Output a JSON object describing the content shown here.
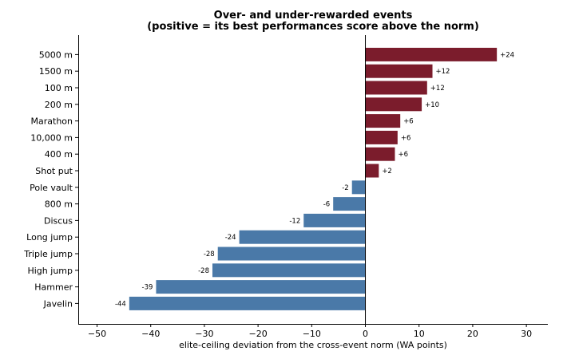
{
  "chart_data": {
    "type": "bar",
    "orientation": "horizontal",
    "title_line1": "Over- and under-rewarded events",
    "title_line2": "(positive = its best performances score above the norm)",
    "xlabel": "elite-ceiling deviation from the cross-event norm (WA points)",
    "ylabel": "",
    "xlim": [
      -53.5,
      34
    ],
    "xticks": [
      -50,
      -40,
      -30,
      -20,
      -10,
      0,
      10,
      20,
      30
    ],
    "xtick_labels": [
      "−50",
      "−40",
      "−30",
      "−20",
      "−10",
      "0",
      "10",
      "20",
      "30"
    ],
    "grid": false,
    "zero_line": true,
    "colors": {
      "positive": "#7b1c2c",
      "negative": "#4a79a8"
    },
    "categories": [
      "5000 m",
      "1500 m",
      "100 m",
      "200 m",
      "Marathon",
      "10,000 m",
      "400 m",
      "Shot put",
      "Pole vault",
      "800 m",
      "Discus",
      "Long jump",
      "Triple jump",
      "High jump",
      "Hammer",
      "Javelin"
    ],
    "values": [
      24.5,
      12.5,
      11.5,
      10.5,
      6.5,
      6,
      5.5,
      2.5,
      -2.5,
      -6,
      -11.5,
      -23.5,
      -27.5,
      -28.5,
      -39,
      -44
    ],
    "data_labels": [
      "+24",
      "+12",
      "+12",
      "+10",
      "+6",
      "+6",
      "+6",
      "+2",
      "-2",
      "-6",
      "-12",
      "-24",
      "-28",
      "-28",
      "-39",
      "-44"
    ]
  }
}
